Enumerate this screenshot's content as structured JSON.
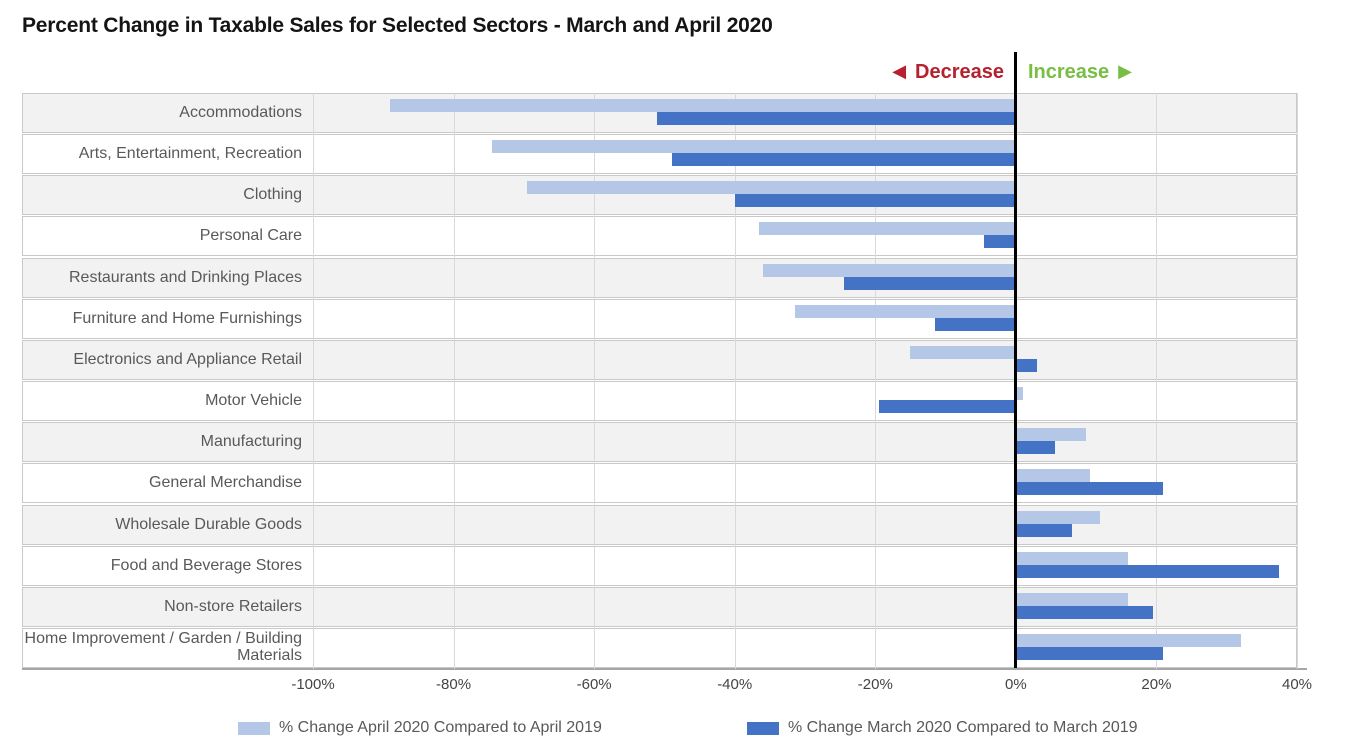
{
  "chart_data": {
    "type": "bar",
    "orientation": "horizontal",
    "title": "Percent Change in Taxable Sales for Selected Sectors - March and April 2020",
    "categories": [
      "Accommodations",
      "Arts, Entertainment, Recreation",
      "Clothing",
      "Personal Care",
      "Restaurants and Drinking Places",
      "Furniture and Home Furnishings",
      "Electronics and Appliance Retail",
      "Motor Vehicle",
      "Manufacturing",
      "General Merchandise",
      "Wholesale Durable Goods",
      "Food and Beverage Stores",
      "Non-store Retailers",
      "Home Improvement / Garden / Building Materials"
    ],
    "series": [
      {
        "name": "% Change April 2020 Compared to April 2019",
        "color": "#b4c7e7",
        "values": [
          -89,
          -74.5,
          -69.5,
          -36.5,
          -36,
          -31.5,
          -15,
          1,
          10,
          10.5,
          12,
          16,
          16,
          32
        ]
      },
      {
        "name": "% Change March 2020 Compared to March 2019",
        "color": "#4472c4",
        "values": [
          -51,
          -49,
          -40,
          -4.5,
          -24.5,
          -11.5,
          3,
          -19.5,
          5.5,
          21,
          8,
          37.5,
          19.5,
          21
        ]
      }
    ],
    "xlim": [
      -100,
      40
    ],
    "x_ticks": [
      {
        "value": -100,
        "label": "-100%"
      },
      {
        "value": -80,
        "label": "-80%"
      },
      {
        "value": -60,
        "label": "-60%"
      },
      {
        "value": -40,
        "label": "-40%"
      },
      {
        "value": -20,
        "label": "-20%"
      },
      {
        "value": 0,
        "label": "0%"
      },
      {
        "value": 20,
        "label": "20%"
      },
      {
        "value": 40,
        "label": "40%"
      }
    ],
    "grid": "vertical",
    "legend_position": "bottom",
    "row_stripe_colors": [
      "#f2f2f2",
      "#ffffff"
    ],
    "zero_line_color": "#000000",
    "annotations": {
      "decrease_label": "Decrease",
      "decrease_arrow": "◀",
      "decrease_color": "#b5212d",
      "increase_label": "Increase",
      "increase_arrow": "▶",
      "increase_color": "#78be43"
    }
  }
}
